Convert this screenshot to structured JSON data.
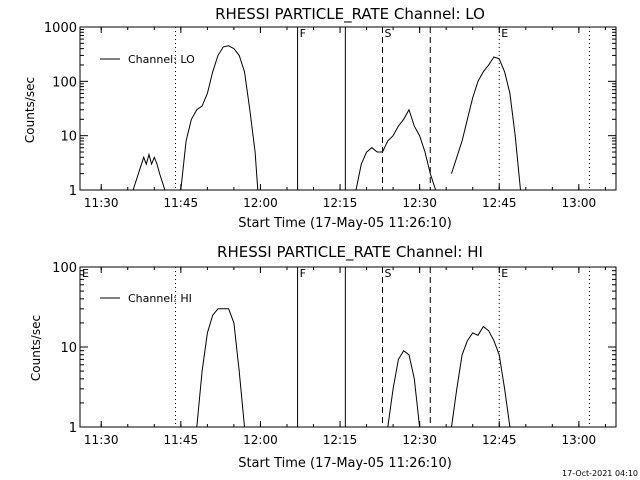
{
  "footer": {
    "timestamp": "17-Oct-2021 04:10"
  },
  "chart_data": [
    {
      "type": "line",
      "title": "RHESSI PARTICLE_RATE Channel: LO",
      "xlabel": "Start Time (17-May-05 11:26:10)",
      "ylabel": "Counts/sec",
      "yscale": "log",
      "ylim": [
        1,
        1000
      ],
      "xlim": [
        "11:26",
        "13:07"
      ],
      "x_ticks": [
        "11:30",
        "11:45",
        "12:00",
        "12:15",
        "12:30",
        "12:45",
        "13:00"
      ],
      "y_ticks": [
        "1",
        "10",
        "100",
        "1000"
      ],
      "legend": {
        "position": "top-left",
        "entries": [
          "Channel: LO"
        ]
      },
      "markers": [
        {
          "label": "",
          "time": "11:44",
          "style": "dotted"
        },
        {
          "label": "F",
          "time": "12:07",
          "style": "solid"
        },
        {
          "label": "",
          "time": "12:16",
          "style": "solid"
        },
        {
          "label": "S",
          "time": "12:23",
          "style": "dashed"
        },
        {
          "label": "",
          "time": "12:32",
          "style": "dashed"
        },
        {
          "label": "E",
          "time": "12:45",
          "style": "dotted"
        },
        {
          "label": "",
          "time": "13:02",
          "style": "dotted"
        }
      ],
      "series": [
        {
          "name": "Channel: LO",
          "segments": [
            [
              [
                "11:36",
                1
              ],
              [
                "11:37",
                2
              ],
              [
                "11:38",
                4
              ],
              [
                "11:38.5",
                3
              ],
              [
                "11:39",
                4.5
              ],
              [
                "11:39.5",
                3
              ],
              [
                "11:40",
                4
              ],
              [
                "11:40.5",
                3
              ],
              [
                "11:41",
                2
              ],
              [
                "11:42",
                1
              ]
            ],
            [
              [
                "11:45",
                1
              ],
              [
                "11:46",
                8
              ],
              [
                "11:47",
                20
              ],
              [
                "11:48",
                30
              ],
              [
                "11:49",
                35
              ],
              [
                "11:50",
                60
              ],
              [
                "11:51",
                150
              ],
              [
                "11:52",
                300
              ],
              [
                "11:53",
                430
              ],
              [
                "11:54",
                450
              ],
              [
                "11:55",
                400
              ],
              [
                "11:56",
                300
              ],
              [
                "11:57",
                150
              ],
              [
                "11:58",
                30
              ],
              [
                "11:59",
                5
              ],
              [
                "11:59.5",
                1
              ]
            ],
            [
              [
                "12:18",
                1
              ],
              [
                "12:19",
                3
              ],
              [
                "12:20",
                5
              ],
              [
                "12:21",
                6
              ],
              [
                "12:22",
                5
              ],
              [
                "12:23",
                5
              ],
              [
                "12:24",
                8
              ],
              [
                "12:25",
                10
              ],
              [
                "12:26",
                15
              ],
              [
                "12:27",
                20
              ],
              [
                "12:28",
                30
              ],
              [
                "12:29",
                15
              ],
              [
                "12:30",
                10
              ],
              [
                "12:31",
                5
              ],
              [
                "12:32",
                2
              ],
              [
                "12:33",
                1
              ]
            ],
            [
              [
                "12:36",
                2
              ],
              [
                "12:38",
                8
              ],
              [
                "12:39",
                20
              ],
              [
                "12:40",
                50
              ],
              [
                "12:41",
                100
              ],
              [
                "12:42",
                150
              ],
              [
                "12:43",
                200
              ],
              [
                "12:44",
                280
              ],
              [
                "12:45",
                260
              ],
              [
                "12:46",
                150
              ],
              [
                "12:47",
                60
              ],
              [
                "12:48",
                10
              ],
              [
                "12:49",
                1
              ]
            ]
          ]
        }
      ]
    },
    {
      "type": "line",
      "title": "RHESSI PARTICLE_RATE Channel: HI",
      "xlabel": "Start Time (17-May-05 11:26:10)",
      "ylabel": "Counts/sec",
      "yscale": "log",
      "ylim": [
        1,
        100
      ],
      "xlim": [
        "11:26",
        "13:07"
      ],
      "x_ticks": [
        "11:30",
        "11:45",
        "12:00",
        "12:15",
        "12:30",
        "12:45",
        "13:00"
      ],
      "y_ticks": [
        "1",
        "10",
        "100"
      ],
      "legend": {
        "position": "top-left",
        "entries": [
          "Channel: HI"
        ]
      },
      "markers": [
        {
          "label": "E",
          "time": "11:26",
          "style": "none"
        },
        {
          "label": "",
          "time": "11:44",
          "style": "dotted"
        },
        {
          "label": "F",
          "time": "12:07",
          "style": "solid"
        },
        {
          "label": "",
          "time": "12:16",
          "style": "solid"
        },
        {
          "label": "S",
          "time": "12:23",
          "style": "dashed"
        },
        {
          "label": "",
          "time": "12:32",
          "style": "dashed"
        },
        {
          "label": "E",
          "time": "12:45",
          "style": "dotted"
        },
        {
          "label": "",
          "time": "13:02",
          "style": "dotted"
        }
      ],
      "series": [
        {
          "name": "Channel: HI",
          "segments": [
            [
              [
                "11:48",
                1
              ],
              [
                "11:49",
                5
              ],
              [
                "11:50",
                15
              ],
              [
                "11:51",
                25
              ],
              [
                "11:52",
                30
              ],
              [
                "11:53",
                30
              ],
              [
                "11:54",
                30
              ],
              [
                "11:55",
                20
              ],
              [
                "11:56",
                5
              ],
              [
                "11:57",
                1
              ]
            ],
            [
              [
                "12:24",
                1
              ],
              [
                "12:25",
                3
              ],
              [
                "12:26",
                7
              ],
              [
                "12:27",
                9
              ],
              [
                "12:28",
                8
              ],
              [
                "12:29",
                4
              ],
              [
                "12:30",
                1
              ]
            ],
            [
              [
                "12:36",
                1
              ],
              [
                "12:37",
                3
              ],
              [
                "12:38",
                8
              ],
              [
                "12:39",
                12
              ],
              [
                "12:40",
                15
              ],
              [
                "12:41",
                14
              ],
              [
                "12:42",
                18
              ],
              [
                "12:43",
                16
              ],
              [
                "12:44",
                12
              ],
              [
                "12:45",
                8
              ],
              [
                "12:46",
                3
              ],
              [
                "12:47",
                1
              ]
            ]
          ]
        }
      ]
    }
  ]
}
